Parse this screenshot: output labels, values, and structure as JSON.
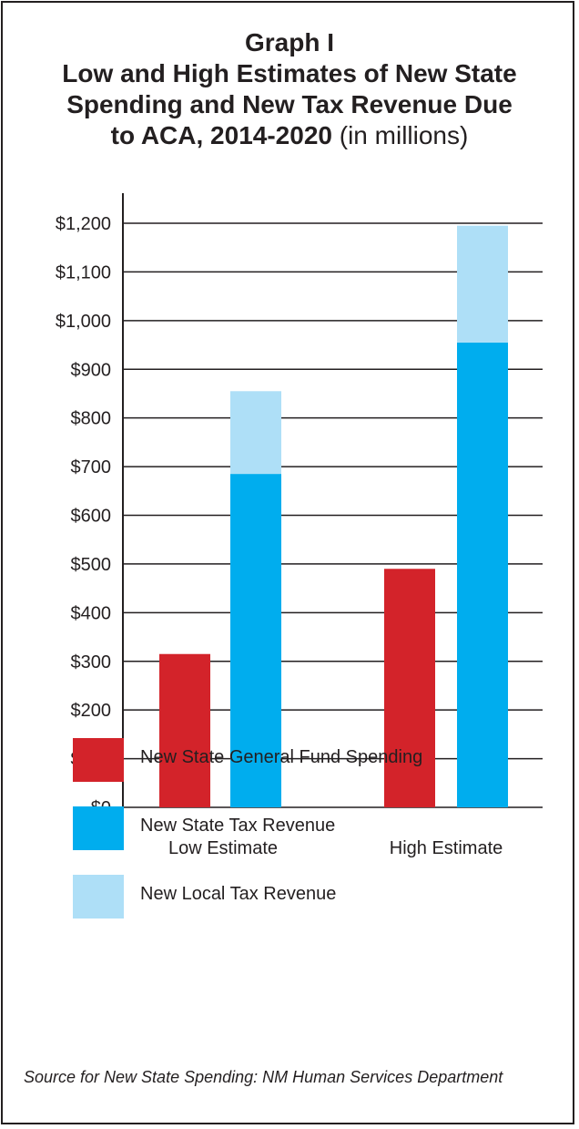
{
  "title_lines": [
    "Graph I",
    "Low and High Estimates of New State",
    "Spending and New Tax Revenue Due",
    "to ACA, 2014-2020"
  ],
  "title_suffix": " (in millions)",
  "legend": [
    {
      "label": "New State General Fund Spending",
      "color": "#d3232a"
    },
    {
      "label": "New State Tax Revenue",
      "color": "#00adee"
    },
    {
      "label": "New Local Tax Revenue",
      "color": "#aedff7"
    }
  ],
  "source_text": "Source for New State Spending: NM Human Services Department",
  "chart_data": {
    "type": "bar",
    "categories": [
      "Low Estimate",
      "High Estimate"
    ],
    "series": [
      {
        "name": "New State General Fund Spending",
        "color": "#d3232a",
        "values": [
          315,
          490
        ]
      },
      {
        "name": "New State Tax Revenue",
        "color": "#00adee",
        "values": [
          685,
          955
        ]
      },
      {
        "name": "New Local Tax Revenue",
        "color": "#aedff7",
        "values": [
          170,
          240
        ],
        "stacked_on": "New State Tax Revenue"
      }
    ],
    "ylim": [
      0,
      1200
    ],
    "yticks": [
      0,
      100,
      200,
      300,
      400,
      500,
      600,
      700,
      800,
      900,
      1000,
      1100,
      1200
    ],
    "ytick_labels": [
      "$0",
      "$100",
      "$200",
      "$300",
      "$400",
      "$500",
      "$600",
      "$700",
      "$800",
      "$900",
      "$1,000",
      "$1,100",
      "$1,200"
    ],
    "grid": true,
    "legend_position": "bottom"
  }
}
